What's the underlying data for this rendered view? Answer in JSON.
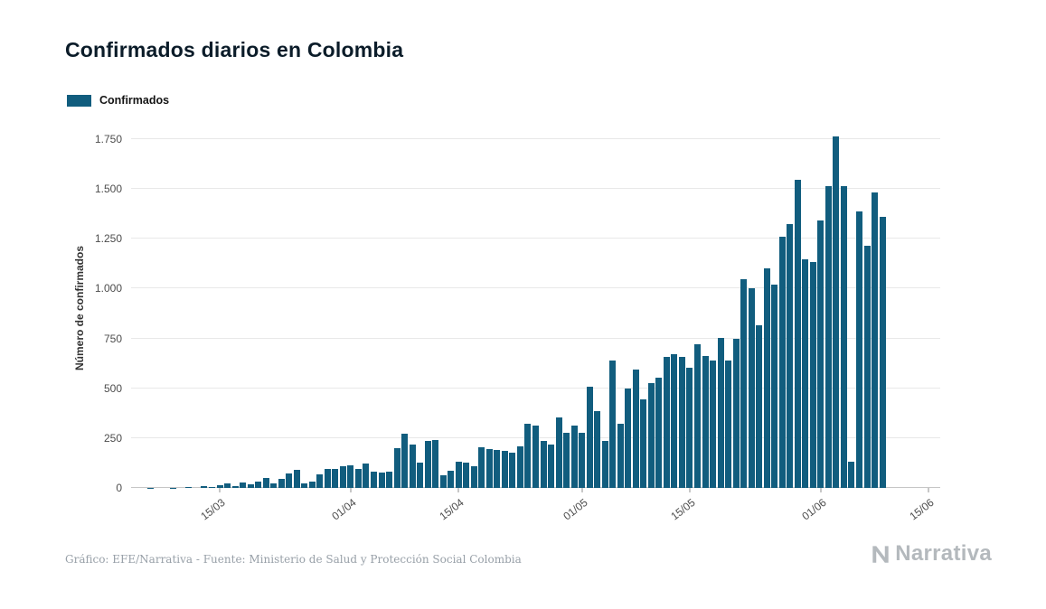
{
  "page": {
    "background": "#ffffff"
  },
  "header": {
    "title": "Confirmados diarios en Colombia"
  },
  "legend": {
    "label": "Confirmados"
  },
  "footer": {
    "credit": "Gráfico: EFE/Narrativa - Fuente: Ministerio de Salud y Protección Social Colombia"
  },
  "brand": {
    "wordmark": "Narrativa",
    "icon": "narrativa-n-icon",
    "color": "#b4b9bd"
  },
  "chart_data": {
    "type": "bar",
    "title": "Confirmados diarios en Colombia",
    "series_name": "Confirmados",
    "xlabel": "",
    "ylabel": "Número de confirmados",
    "ylim": [
      0,
      1800
    ],
    "yticks": [
      0,
      250,
      500,
      750,
      1000,
      1250,
      1500,
      1750
    ],
    "ytick_labels": [
      "0",
      "250",
      "500",
      "750",
      "1.000",
      "1.250",
      "1.500",
      "1.750"
    ],
    "xtick_labels": [
      "15/03",
      "01/04",
      "15/04",
      "01/05",
      "15/05",
      "01/06",
      "15/06"
    ],
    "x_domain": [
      "04/03",
      "16/06"
    ],
    "grid": true,
    "legend_position": "top-left",
    "bar_color": "#115d7e",
    "dates": [
      "06/03",
      "07/03",
      "08/03",
      "09/03",
      "10/03",
      "11/03",
      "12/03",
      "13/03",
      "14/03",
      "15/03",
      "16/03",
      "17/03",
      "18/03",
      "19/03",
      "20/03",
      "21/03",
      "22/03",
      "23/03",
      "24/03",
      "25/03",
      "26/03",
      "27/03",
      "28/03",
      "29/03",
      "30/03",
      "31/03",
      "01/04",
      "02/04",
      "03/04",
      "04/04",
      "05/04",
      "06/04",
      "07/04",
      "08/04",
      "09/04",
      "10/04",
      "11/04",
      "12/04",
      "13/04",
      "14/04",
      "15/04",
      "16/04",
      "17/04",
      "18/04",
      "19/04",
      "20/04",
      "21/04",
      "22/04",
      "23/04",
      "24/04",
      "25/04",
      "26/04",
      "27/04",
      "28/04",
      "29/04",
      "30/04",
      "01/05",
      "02/05",
      "03/05",
      "04/05",
      "05/05",
      "06/05",
      "07/05",
      "08/05",
      "09/05",
      "10/05",
      "11/05",
      "12/05",
      "13/05",
      "14/05",
      "15/05",
      "16/05",
      "17/05",
      "18/05",
      "19/05",
      "20/05",
      "21/05",
      "22/05",
      "23/05",
      "24/05",
      "25/05",
      "26/05",
      "27/05",
      "28/05",
      "29/05",
      "30/05",
      "31/05",
      "01/06",
      "02/06",
      "03/06",
      "04/06",
      "05/06",
      "06/06",
      "07/06",
      "08/06",
      "09/06"
    ],
    "values": [
      1,
      0,
      0,
      2,
      0,
      6,
      0,
      7,
      6,
      12,
      21,
      10,
      28,
      16,
      30,
      50,
      21,
      47,
      72,
      92,
      21,
      31,
      69,
      94,
      96,
      108,
      114,
      97,
      124,
      80,
      79,
      80,
      201,
      274,
      216,
      128,
      235,
      242,
      65,
      87,
      133,
      128,
      109,
      206,
      193,
      190,
      184,
      178,
      210,
      320,
      315,
      235,
      218,
      352,
      276,
      313,
      276,
      507,
      385,
      237,
      640,
      320,
      497,
      595,
      444,
      528,
      555,
      658,
      669,
      658,
      604,
      723,
      660,
      640,
      753,
      640,
      750,
      1046,
      1002,
      816,
      1101,
      1022,
      1262,
      1323,
      1548,
      1147,
      1134,
      1343,
      1515,
      1766,
      1515,
      130,
      1389,
      1215,
      1483,
      1362
    ]
  }
}
